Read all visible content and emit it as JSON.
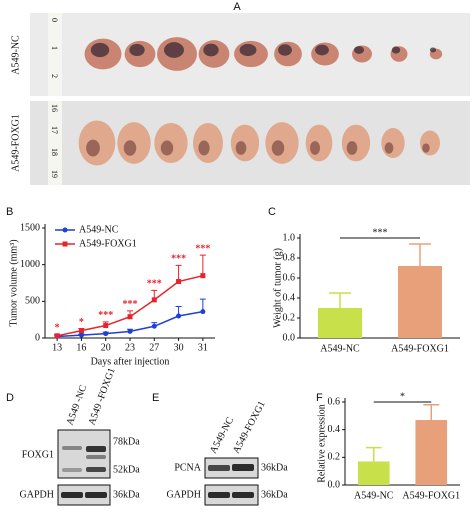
{
  "panels": {
    "a": {
      "label": "A",
      "rows": [
        "A549-NC",
        "A549-FOXG1"
      ],
      "rulers": [
        [
          "0",
          "1",
          "2"
        ],
        [
          "16",
          "17",
          "18",
          "19"
        ]
      ]
    },
    "d": {
      "label": "D",
      "columns": [
        "A549 -NC",
        "A549 -FOXG1"
      ],
      "rows": [
        "FOXG1",
        "GAPDH"
      ],
      "markers": [
        "78kDa",
        "52kDa",
        "36kDa"
      ]
    },
    "e": {
      "label": "E",
      "columns": [
        "A549-NC",
        "A549-FOXG1"
      ],
      "rows": [
        "PCNA",
        "GAPDH"
      ],
      "markers": [
        "36kDa",
        "36kDa"
      ]
    }
  },
  "chart_data": [
    {
      "panel": "B",
      "type": "line",
      "x_label": "Days after injection",
      "y_label": "Tumor volume (mm³)",
      "categories": [
        13,
        16,
        20,
        23,
        27,
        30,
        31
      ],
      "ylim": [
        0,
        1500
      ],
      "yticks": [
        0,
        500,
        1000,
        1500
      ],
      "legend": "upper left",
      "series": [
        {
          "name": "A549-NC",
          "color": "#1f3fd6",
          "values": [
            20,
            40,
            60,
            90,
            160,
            300,
            360
          ],
          "errors": [
            10,
            15,
            20,
            30,
            50,
            130,
            170
          ]
        },
        {
          "name": "A549-FOXG1",
          "color": "#e8242a",
          "values": [
            30,
            100,
            170,
            290,
            520,
            770,
            850
          ],
          "errors": [
            20,
            30,
            50,
            80,
            130,
            220,
            280
          ]
        }
      ],
      "annotations": [
        "*",
        "*",
        "***",
        "***",
        "***",
        "***",
        "***"
      ]
    },
    {
      "panel": "C",
      "type": "bar",
      "y_label": "Weight of tumor (g)",
      "categories": [
        "A549-NC",
        "A549-FOXG1"
      ],
      "values": [
        0.3,
        0.72
      ],
      "errors": [
        0.15,
        0.22
      ],
      "colors": [
        "#c8e04a",
        "#e8a07a"
      ],
      "ylim": [
        0,
        1
      ],
      "yticks": [
        {
          "value": 0,
          "label": "0.0"
        },
        0.2,
        0.4,
        0.6,
        0.8,
        {
          "value": 1,
          "label": "1.0"
        }
      ],
      "annotation": "***"
    },
    {
      "panel": "F",
      "type": "bar",
      "y_label": "Relative expression",
      "categories": [
        "A549-NC",
        "A549-FOXG1"
      ],
      "values": [
        0.17,
        0.47
      ],
      "errors": [
        0.1,
        0.11
      ],
      "colors": [
        "#c8e04a",
        "#e8a07a"
      ],
      "ylim": [
        0,
        0.6
      ],
      "yticks": [
        {
          "value": 0,
          "label": "0.0"
        },
        0.2,
        0.4,
        0.6
      ],
      "annotation": "*"
    }
  ]
}
